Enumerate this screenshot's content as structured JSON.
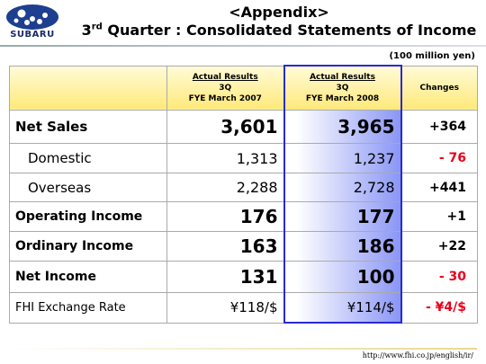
{
  "header": {
    "logo_text": "SUBARU",
    "subtitle": "<Appendix>",
    "title": {
      "number": "3",
      "ordinal": "rd",
      "text": " Quarter : Consolidated Statements of Income"
    }
  },
  "unit": "(100 million yen)",
  "table": {
    "columns": [
      {
        "lines": [
          "Actual Results",
          "3Q",
          "FYE March 2007"
        ]
      },
      {
        "lines": [
          "Actual Results",
          "3Q",
          "FYE March 2008"
        ]
      },
      {
        "lines": [
          "Changes"
        ]
      }
    ],
    "rows": [
      [
        "Net Sales",
        "3,601",
        "3,965",
        "+364"
      ],
      [
        "Domestic",
        "1,313",
        "1,237",
        "- 76"
      ],
      [
        "Overseas",
        "2,288",
        "2,728",
        "+441"
      ],
      [
        "Operating Income",
        "176",
        "177",
        "+1"
      ],
      [
        "Ordinary Income",
        "163",
        "186",
        "+22"
      ],
      [
        "Net Income",
        "131",
        "100",
        "- 30"
      ],
      [
        "FHI Exchange Rate",
        "¥118/$",
        "¥114/$",
        "- ¥4/$"
      ]
    ]
  },
  "footer": {
    "url": "http://www.fhi.co.jp/english/ir/"
  }
}
